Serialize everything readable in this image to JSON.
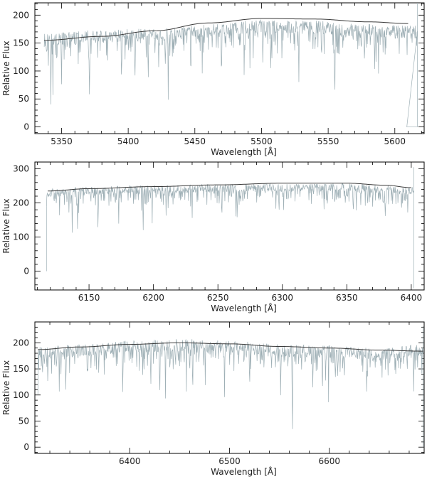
{
  "chart_data": [
    {
      "type": "line",
      "xlabel": "Wavelength [Å]",
      "ylabel": "Relative Flux",
      "xlim": [
        5330,
        5622
      ],
      "ylim": [
        -12,
        222
      ],
      "xticks": [
        5350,
        5400,
        5450,
        5500,
        5550,
        5600
      ],
      "yticks": [
        0,
        50,
        100,
        150,
        200
      ],
      "xrange_data": [
        5337,
        5617
      ],
      "series": [
        {
          "role": "continuum",
          "x": [
            5337,
            5380,
            5420,
            5460,
            5500,
            5540,
            5580,
            5610
          ],
          "values": [
            155,
            162,
            172,
            186,
            194,
            193,
            188,
            185
          ]
        }
      ],
      "spectrum_envelope": {
        "x": [
          5337,
          5380,
          5420,
          5460,
          5500,
          5540,
          5580,
          5610
        ],
        "values": [
          155,
          162,
          165,
          172,
          180,
          178,
          172,
          170
        ]
      },
      "absorption_lines": [
        {
          "x": 5342,
          "depth": 120
        },
        {
          "x": 5350,
          "depth": 100
        },
        {
          "x": 5371,
          "depth": 130
        },
        {
          "x": 5395,
          "depth": 110
        },
        {
          "x": 5405,
          "depth": 115
        },
        {
          "x": 5415,
          "depth": 105
        },
        {
          "x": 5430,
          "depth": 130
        },
        {
          "x": 5447,
          "depth": 110
        },
        {
          "x": 5470,
          "depth": 100
        },
        {
          "x": 5487,
          "depth": 95
        },
        {
          "x": 5501,
          "depth": 85
        },
        {
          "x": 5507,
          "depth": 110
        },
        {
          "x": 5528,
          "depth": 100
        },
        {
          "x": 5555,
          "depth": 80
        },
        {
          "x": 5586,
          "depth": 65
        }
      ],
      "edge_drop": {
        "x_start": 5609,
        "x_end": 5617,
        "level": 0,
        "spike": 222
      }
    },
    {
      "type": "line",
      "xlabel": "Wavelength [Å]",
      "ylabel": "Relative Flux",
      "xlim": [
        6108,
        6410
      ],
      "ylim": [
        -55,
        320
      ],
      "xticks": [
        6150,
        6200,
        6250,
        6300,
        6350,
        6400
      ],
      "yticks": [
        0,
        100,
        200,
        300
      ],
      "xrange_data": [
        6117,
        6402
      ],
      "series": [
        {
          "role": "continuum",
          "x": [
            6118,
            6150,
            6200,
            6250,
            6300,
            6350,
            6380,
            6400
          ],
          "values": [
            235,
            242,
            248,
            253,
            258,
            258,
            252,
            245
          ]
        }
      ],
      "spectrum_envelope": {
        "x": [
          6118,
          6150,
          6200,
          6250,
          6300,
          6350,
          6380,
          6400
        ],
        "values": [
          230,
          236,
          240,
          243,
          245,
          246,
          240,
          235
        ]
      },
      "absorption_lines": [
        {
          "x": 6137,
          "depth": 145
        },
        {
          "x": 6141,
          "depth": 130
        },
        {
          "x": 6157,
          "depth": 130
        },
        {
          "x": 6173,
          "depth": 110
        },
        {
          "x": 6192,
          "depth": 135
        },
        {
          "x": 6230,
          "depth": 100
        },
        {
          "x": 6253,
          "depth": 85
        },
        {
          "x": 6265,
          "depth": 80
        },
        {
          "x": 6301,
          "depth": 75
        },
        {
          "x": 6335,
          "depth": 70
        },
        {
          "x": 6355,
          "depth": 85
        },
        {
          "x": 6380,
          "depth": 75
        }
      ],
      "edge_drop": {
        "x_start": 6117,
        "x_end": 6402,
        "level": 0,
        "spike": 305
      }
    },
    {
      "type": "line",
      "xlabel": "Wavelength [Å]",
      "ylabel": "Relative Flux",
      "xlim": [
        6305,
        6695
      ],
      "ylim": [
        -12,
        240
      ],
      "xticks": [
        6400,
        6500,
        6600
      ],
      "yticks": [
        0,
        50,
        100,
        150,
        200
      ],
      "xrange_data": [
        6308,
        6694
      ],
      "series": [
        {
          "role": "continuum",
          "x": [
            6308,
            6350,
            6400,
            6450,
            6500,
            6550,
            6600,
            6650,
            6694
          ],
          "values": [
            187,
            192,
            197,
            200,
            198,
            193,
            190,
            186,
            184
          ]
        }
      ],
      "spectrum_envelope": {
        "x": [
          6308,
          6350,
          6400,
          6450,
          6500,
          6550,
          6600,
          6650,
          6694
        ],
        "values": [
          180,
          185,
          192,
          196,
          193,
          185,
          183,
          178,
          185
        ]
      },
      "absorption_lines": [
        {
          "x": 6318,
          "depth": 80
        },
        {
          "x": 6336,
          "depth": 90
        },
        {
          "x": 6358,
          "depth": 70
        },
        {
          "x": 6393,
          "depth": 115
        },
        {
          "x": 6421,
          "depth": 80
        },
        {
          "x": 6430,
          "depth": 95
        },
        {
          "x": 6463,
          "depth": 80
        },
        {
          "x": 6495,
          "depth": 110
        },
        {
          "x": 6520,
          "depth": 70
        },
        {
          "x": 6563,
          "depth": 175
        },
        {
          "x": 6593,
          "depth": 60
        },
        {
          "x": 6678,
          "depth": 50
        }
      ],
      "edge_drop": {
        "x_start": 6694,
        "x_end": 6694,
        "level": 185,
        "spike": 232
      }
    }
  ]
}
